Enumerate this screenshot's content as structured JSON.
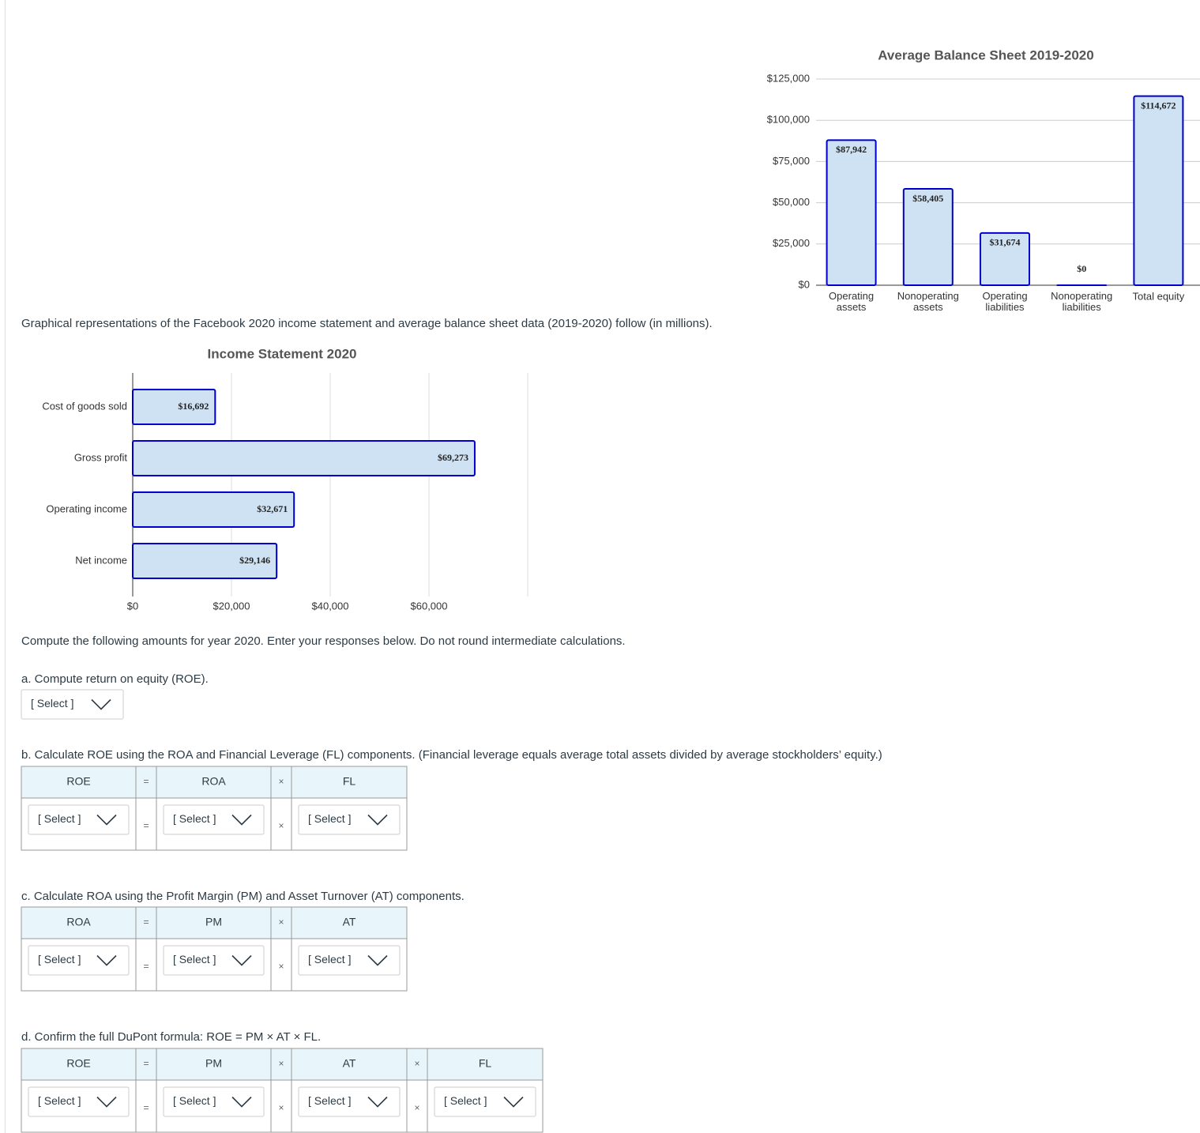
{
  "chart_data": [
    {
      "type": "bar",
      "title": "Average Balance Sheet 2019-2020",
      "categories": [
        "Operating assets",
        "Nonoperating assets",
        "Operating liabilities",
        "Nonoperating liabilities",
        "Total equity"
      ],
      "values": [
        87942,
        58405,
        31674,
        0,
        114672
      ],
      "value_labels": [
        "$87,942",
        "$58,405",
        "$31,674",
        "$0",
        "$114,672"
      ],
      "color": "#cfe2f3",
      "edge_color": "#0000cc",
      "ylim": [
        0,
        125000
      ],
      "yticks": [
        {
          "value": 0,
          "label": "$0"
        },
        {
          "value": 25000,
          "label": "$25,000"
        },
        {
          "value": 50000,
          "label": "$50,000"
        },
        {
          "value": 75000,
          "label": "$75,000"
        },
        {
          "value": 100000,
          "label": "$100,000"
        },
        {
          "value": 125000,
          "label": "$125,000"
        }
      ],
      "grid": true
    },
    {
      "type": "barh",
      "title": "Income Statement 2020",
      "categories": [
        "Cost of goods sold",
        "Gross profit",
        "Operating income",
        "Net income"
      ],
      "values": [
        16692,
        69273,
        32671,
        29146
      ],
      "value_labels": [
        "$16,692",
        "$69,273",
        "$32,671",
        "$29,146"
      ],
      "color": "#cfe2f3",
      "edge_color": "#0000cc",
      "xlim": [
        0,
        80000
      ],
      "xticks": [
        {
          "value": 0,
          "label": "$0"
        },
        {
          "value": 20000,
          "label": "$20,000"
        },
        {
          "value": 40000,
          "label": "$40,000"
        },
        {
          "value": 60000,
          "label": "$60,000"
        }
      ],
      "grid": true
    }
  ],
  "intro": "Graphical representations of the Facebook 2020 income statement and average balance sheet data (2019-2020) follow (in millions).",
  "instructions": "Compute the following amounts for year 2020. Enter your responses below. Do not round intermediate calculations.",
  "part_a": {
    "label": "a. Compute return on equity (ROE).",
    "select": "[ Select ]"
  },
  "part_b": {
    "label": "b. Calculate ROE using the ROA and Financial Leverage (FL) components. (Financial leverage equals average total assets divided by average stockholders’ equity.)",
    "header": [
      "ROE",
      "=",
      "ROA",
      "×",
      "FL"
    ],
    "row": [
      "[ Select ]",
      "=",
      "[ Select ]",
      "×",
      "[ Select ]"
    ]
  },
  "part_c": {
    "label": "c. Calculate ROA using the Profit Margin (PM) and Asset Turnover (AT) components.",
    "header": [
      "ROA",
      "=",
      "PM",
      "×",
      "AT"
    ],
    "row": [
      "[ Select ]",
      "=",
      "[ Select ]",
      "×",
      "[ Select ]"
    ]
  },
  "part_d": {
    "label": "d. Confirm the full DuPont formula: ROE = PM × AT × FL.",
    "header": [
      "ROE",
      "=",
      "PM",
      "×",
      "AT",
      "×",
      "FL"
    ],
    "row": [
      "[ Select ]",
      "=",
      "[ Select ]",
      "×",
      "[ Select ]",
      "×",
      "[ Select ]"
    ]
  }
}
